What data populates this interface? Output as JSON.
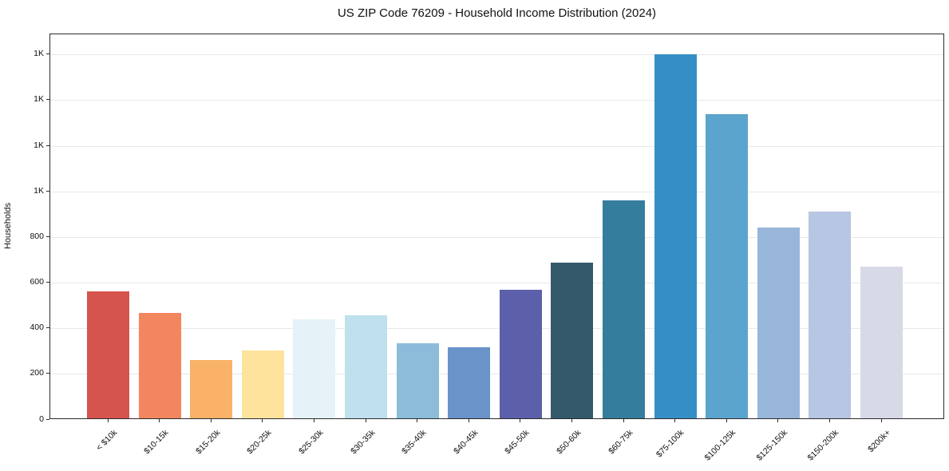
{
  "chart_data": {
    "type": "bar",
    "title": "US ZIP Code 76209 - Household Income Distribution (2024)",
    "xlabel": "",
    "ylabel": "Households",
    "categories": [
      "< $10k",
      "$10-15k",
      "$15-20k",
      "$20-25k",
      "$25-30k",
      "$30-35k",
      "$35-40k",
      "$40-45k",
      "$45-50k",
      "$50-60k",
      "$60-75k",
      "$75-100k",
      "$100-125k",
      "$125-150k",
      "$150-200k",
      "$200k+"
    ],
    "values": [
      555,
      462,
      255,
      297,
      435,
      452,
      330,
      310,
      562,
      683,
      955,
      1595,
      1335,
      837,
      905,
      665
    ],
    "bar_colors": [
      "#d6544e",
      "#f3865f",
      "#f9b267",
      "#fde39c",
      "#e5f2f7",
      "#bfe0ed",
      "#8cbcda",
      "#6a93ca",
      "#5c5fa9",
      "#34596b",
      "#357d9c",
      "#368fc4",
      "#5ba4cd",
      "#98b6d9",
      "#b7c6e2",
      "#d8d9e7"
    ],
    "ylim": [
      0,
      1690
    ],
    "yticks": [
      {
        "value": 0,
        "label": "0"
      },
      {
        "value": 200,
        "label": "200"
      },
      {
        "value": 400,
        "label": "400"
      },
      {
        "value": 600,
        "label": "600"
      },
      {
        "value": 800,
        "label": "800"
      },
      {
        "value": 1000,
        "label": "1K"
      },
      {
        "value": 1200,
        "label": "1K"
      },
      {
        "value": 1400,
        "label": "1K"
      },
      {
        "value": 1600,
        "label": "1K"
      }
    ],
    "grid": "horizontal-light",
    "grid_color": "#e9e9e9",
    "spine_color": "#2b2b2b",
    "legend": "none"
  }
}
